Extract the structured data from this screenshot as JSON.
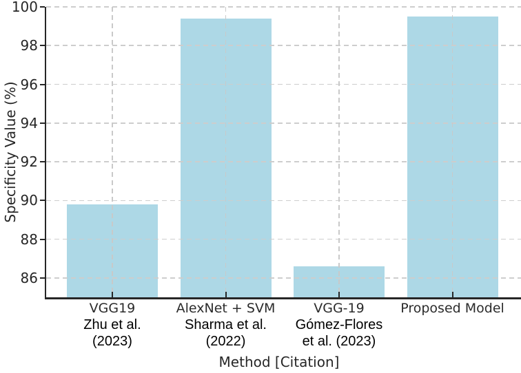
{
  "chart_data": {
    "type": "bar",
    "title": "",
    "xlabel": "Method [Citation]",
    "ylabel": "Specificity Value (%)",
    "ylim": [
      85,
      100
    ],
    "yticks": [
      86,
      88,
      90,
      92,
      94,
      96,
      98,
      100
    ],
    "grid": "both-axes, dashed, drawn above bars",
    "legend_position": "none",
    "bar_color": "#add8e6",
    "categories": [
      {
        "method": "VGG19",
        "citation_lines": [
          "Zhu et al.",
          "(2023)"
        ]
      },
      {
        "method": "AlexNet + SVM",
        "citation_lines": [
          "Sharma et al.",
          "(2022)"
        ]
      },
      {
        "method": "VGG-19",
        "citation_lines": [
          "Gómez-Flores",
          "et al. (2023)"
        ]
      },
      {
        "method": "Proposed Model",
        "citation_lines": []
      }
    ],
    "values": [
      89.8,
      99.4,
      86.6,
      99.5
    ]
  }
}
